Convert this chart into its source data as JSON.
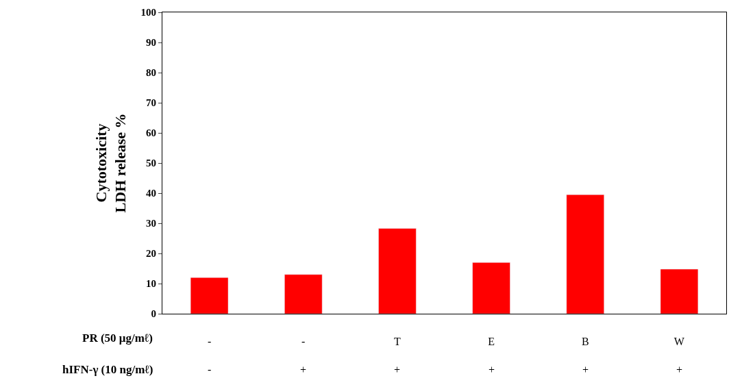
{
  "chart_data": {
    "type": "bar",
    "ylabel": "Cytotoxicity\nLDH release %",
    "categories": [
      "-",
      "-",
      "T",
      "E",
      "B",
      "W"
    ],
    "values": [
      12,
      13,
      28.3,
      17,
      39.5,
      14.8
    ],
    "color": "#ff0000",
    "ylim": [
      0,
      100
    ],
    "yticks": [
      0,
      10,
      20,
      30,
      40,
      50,
      60,
      70,
      80,
      90,
      100
    ],
    "annotations": [
      "PR (50 μg/mℓ)",
      "hIFN-γ (10 ng/mℓ)",
      "-",
      "+",
      "+",
      "+",
      "+",
      "+"
    ]
  }
}
